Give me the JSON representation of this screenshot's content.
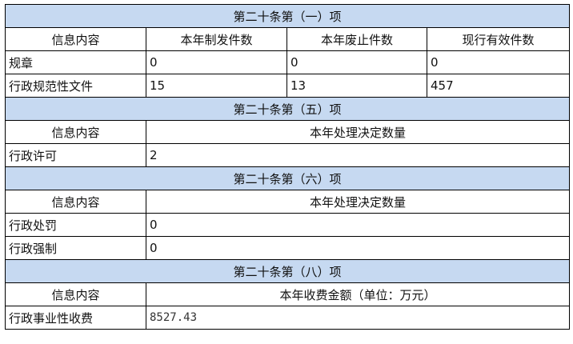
{
  "sections": [
    {
      "title": "第二十条第（一）项",
      "headers": [
        "信息内容",
        "本年制发件数",
        "本年废止件数",
        "现行有效件数"
      ],
      "rows": [
        [
          "规章",
          "0",
          "0",
          "0"
        ],
        [
          "行政规范性文件",
          "15",
          "13",
          "457"
        ]
      ]
    },
    {
      "title": "第二十条第（五）项",
      "headers": [
        "信息内容",
        "本年处理决定数量"
      ],
      "rows": [
        [
          "行政许可",
          "2"
        ]
      ]
    },
    {
      "title": "第二十条第（六）项",
      "headers": [
        "信息内容",
        "本年处理决定数量"
      ],
      "rows": [
        [
          "行政处罚",
          "0"
        ],
        [
          "行政强制",
          "0"
        ]
      ]
    },
    {
      "title": "第二十条第（八）项",
      "headers": [
        "信息内容",
        "本年收费金额（单位：万元）"
      ],
      "rows": [
        [
          "行政事业性收费",
          "8527.43"
        ]
      ]
    }
  ],
  "colors": {
    "section_header_bg": "#c6d9f1",
    "border": "#000000"
  }
}
